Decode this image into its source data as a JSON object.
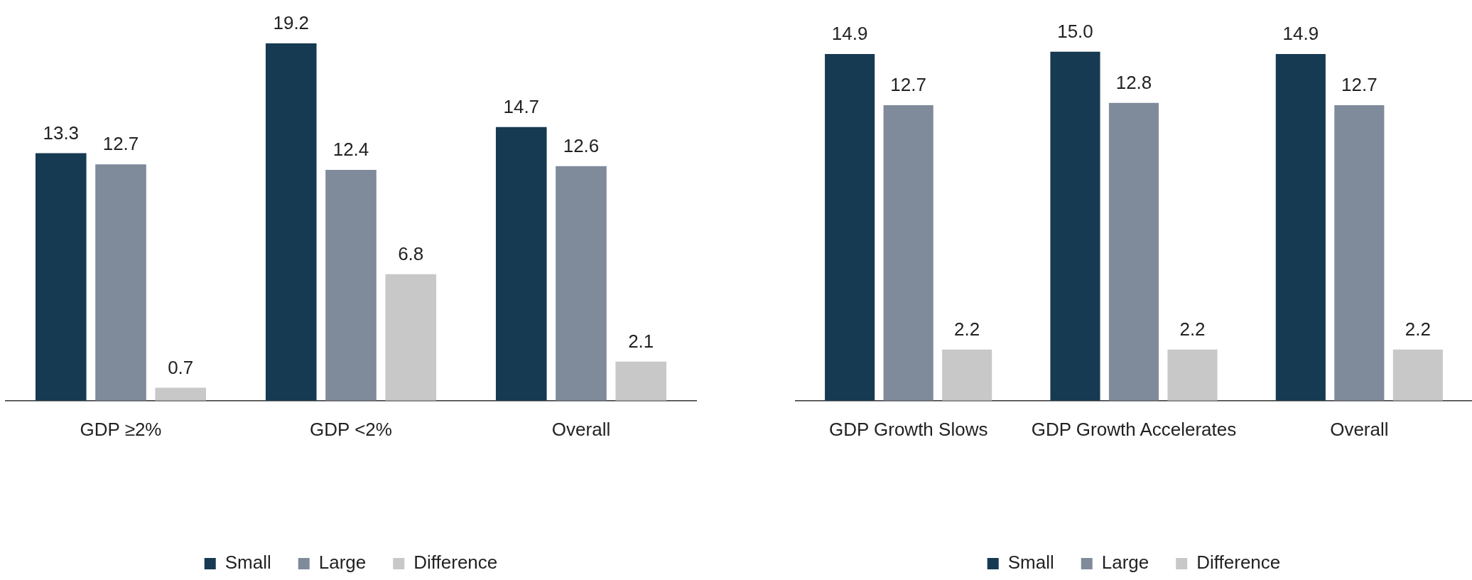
{
  "chart_data": [
    {
      "type": "bar",
      "categories": [
        "GDP ≥2%",
        "GDP <2%",
        "Overall"
      ],
      "series": [
        {
          "name": "Small",
          "color": "#163a52",
          "values": [
            13.3,
            19.2,
            14.7
          ]
        },
        {
          "name": "Large",
          "color": "#7f8b9b",
          "values": [
            12.7,
            12.4,
            12.6
          ]
        },
        {
          "name": "Difference",
          "color": "#c8c8c8",
          "values": [
            0.7,
            6.8,
            2.1
          ]
        }
      ],
      "data_labels": true,
      "legend": "bottom",
      "grid": false
    },
    {
      "type": "bar",
      "categories": [
        "GDP Growth Slows",
        "GDP Growth Accelerates",
        "Overall"
      ],
      "series": [
        {
          "name": "Small",
          "color": "#163a52",
          "values": [
            14.9,
            15.0,
            14.9
          ],
          "value_labels": [
            "14.9",
            "15.0",
            "14.9"
          ]
        },
        {
          "name": "Large",
          "color": "#7f8b9b",
          "values": [
            12.7,
            12.8,
            12.7
          ]
        },
        {
          "name": "Difference",
          "color": "#c8c8c8",
          "values": [
            2.2,
            2.2,
            2.2
          ]
        }
      ],
      "data_labels": true,
      "legend": "bottom",
      "grid": false
    }
  ]
}
